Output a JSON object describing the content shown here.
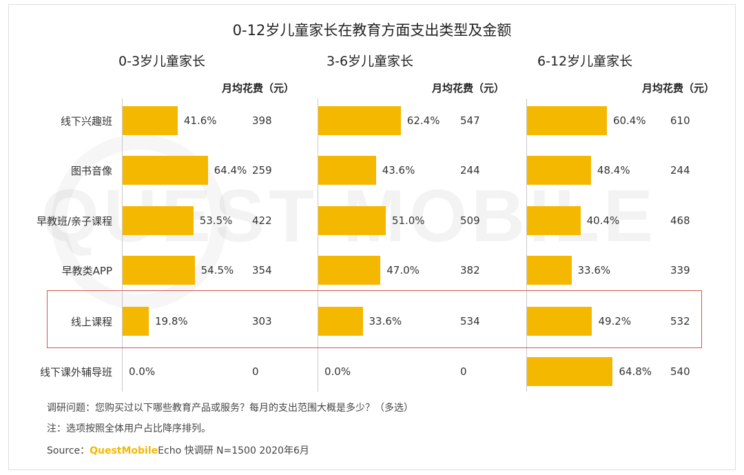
{
  "chart_data": {
    "type": "bar",
    "title": "0-12岁儿童家长在教育方面支出类型及金额",
    "categories": [
      "线下兴趣班",
      "图书音像",
      "早教班/亲子课程",
      "早教类APP",
      "线上课程",
      "线下课外辅导班"
    ],
    "amount_header": "月均花费（元）",
    "highlighted_category": "线上课程",
    "panels": [
      {
        "title": "0-3岁儿童家长",
        "series": [
          {
            "values": [
              41.6,
              64.4,
              53.5,
              54.5,
              19.8,
              0.0
            ]
          }
        ],
        "percent_labels": [
          "41.6%",
          "64.4%",
          "53.5%",
          "54.5%",
          "19.8%",
          "0.0%"
        ],
        "amounts": [
          398,
          259,
          422,
          354,
          303,
          0
        ]
      },
      {
        "title": "3-6岁儿童家长",
        "series": [
          {
            "values": [
              62.4,
              43.6,
              51.0,
              47.0,
              33.6,
              0.0
            ]
          }
        ],
        "percent_labels": [
          "62.4%",
          "43.6%",
          "51.0%",
          "47.0%",
          "33.6%",
          "0.0%"
        ],
        "amounts": [
          547,
          244,
          509,
          382,
          534,
          0
        ]
      },
      {
        "title": "6-12岁儿童家长",
        "series": [
          {
            "values": [
              60.4,
              48.4,
              40.4,
              33.6,
              49.2,
              64.8
            ]
          }
        ],
        "percent_labels": [
          "60.4%",
          "48.4%",
          "40.4%",
          "33.6%",
          "49.2%",
          "64.8%"
        ],
        "amounts": [
          610,
          244,
          468,
          339,
          532,
          540
        ]
      }
    ],
    "xlim": [
      0,
      100
    ],
    "bar_color": "#f5b800",
    "highlight_color": "#d9534f"
  },
  "notes": {
    "survey": "调研问题：您购买过以下哪些教育产品或服务？每月的支出范围大概是多少？（多选）",
    "note": "注：选项按照全体用户占比降序排列。",
    "source_prefix": "Source：",
    "source_brand": "QuestMobile",
    "source_rest": "Echo 快调研 N=1500 2020年6月"
  },
  "watermark": "QUEST MOBILE"
}
